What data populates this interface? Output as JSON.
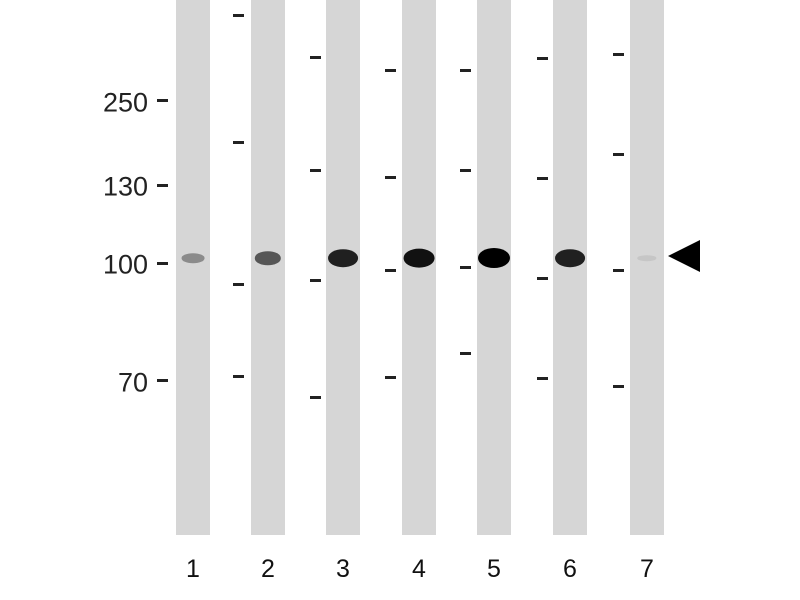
{
  "mw_markers": [
    {
      "label": "250"
    },
    {
      "label": "130"
    },
    {
      "label": "100"
    },
    {
      "label": "70"
    }
  ],
  "lanes": [
    {
      "label": "1",
      "band_intensity": 0.35
    },
    {
      "label": "2",
      "band_intensity": 0.6
    },
    {
      "label": "3",
      "band_intensity": 0.85
    },
    {
      "label": "4",
      "band_intensity": 0.92
    },
    {
      "label": "5",
      "band_intensity": 1.0
    },
    {
      "label": "6",
      "band_intensity": 0.85
    },
    {
      "label": "7",
      "band_intensity": 0.1
    }
  ],
  "target_arrow": "left-pointing-triangle"
}
